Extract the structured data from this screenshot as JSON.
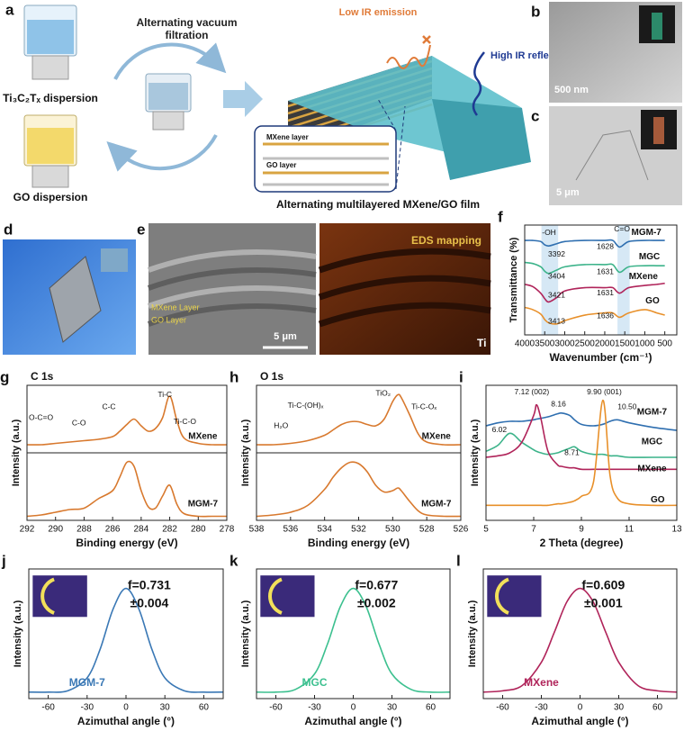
{
  "panels": {
    "a": {
      "label": "a",
      "filtration": "Alternating vacuum filtration",
      "ti_dispersion": "Ti₃C₂Tₓ dispersion",
      "go_dispersion": "GO dispersion",
      "low_ir": "Low IR emission",
      "high_ir": "High IR reflection",
      "mxene_layer": "MXene layer",
      "go_layer": "GO layer",
      "caption": "Alternating multilayered MXene/GO film"
    },
    "b": {
      "label": "b",
      "scale_bar": "500 nm"
    },
    "c": {
      "label": "c",
      "scale_bar": "5 μm"
    },
    "d": {
      "label": "d"
    },
    "e": {
      "label": "e",
      "eds": "EDS mapping",
      "mxene_layer": "MXene Layer",
      "go_layer": "GO Layer",
      "scale_bar": "5 μm",
      "element": "Ti"
    }
  },
  "chart_data": [
    {
      "type": "line",
      "panel_label": "f",
      "x_label": "Wavenumber (cm⁻¹)",
      "y_label": "Transmittance (%)",
      "x": [
        4000,
        3800,
        3600,
        3500,
        3400,
        3200,
        3000,
        2500,
        2000,
        1800,
        1630,
        1400,
        1000,
        700,
        500
      ],
      "xlim": [
        4000,
        200
      ],
      "xticks": [
        4000,
        3500,
        3000,
        2500,
        2000,
        1500,
        1000,
        500
      ],
      "ylim": [
        0,
        10
      ],
      "series": [
        {
          "name": "MGM-7",
          "color": "#2f6fb0",
          "values": [
            8.6,
            8.6,
            8.5,
            8.2,
            8.1,
            8.3,
            8.5,
            8.6,
            8.6,
            8.6,
            8.0,
            8.5,
            8.6,
            8.6,
            8.6
          ]
        },
        {
          "name": "MGC",
          "color": "#3cb38a",
          "values": [
            6.6,
            6.5,
            6.2,
            5.8,
            5.6,
            5.9,
            6.2,
            6.4,
            6.4,
            6.4,
            5.7,
            6.2,
            6.3,
            6.3,
            6.3
          ]
        },
        {
          "name": "MXene",
          "color": "#b0245a",
          "values": [
            4.6,
            4.4,
            3.8,
            3.3,
            3.0,
            3.4,
            4.0,
            4.3,
            4.3,
            4.3,
            3.8,
            4.3,
            4.5,
            4.6,
            4.7
          ]
        },
        {
          "name": "GO",
          "color": "#e8902a",
          "values": [
            2.5,
            2.3,
            1.9,
            1.4,
            1.1,
            1.0,
            1.3,
            1.8,
            2.0,
            2.0,
            1.6,
            2.0,
            2.3,
            2.0,
            1.8
          ]
        }
      ],
      "annotations": [
        "-OH",
        "C=O",
        "3392",
        "1628",
        "3404",
        "1631",
        "3421",
        "1631",
        "3413",
        "1636"
      ]
    },
    {
      "type": "line",
      "panel_label": "g",
      "title": "C 1s",
      "x_label": "Binding energy (eV)",
      "y_label": "Intensity (a.u.)",
      "x": [
        292,
        291,
        290,
        289,
        288,
        287,
        286,
        285.5,
        285,
        284.5,
        284,
        283.5,
        283,
        282.5,
        282,
        281.5,
        281,
        280,
        279,
        278
      ],
      "xlim": [
        292,
        278
      ],
      "xticks": [
        292,
        290,
        288,
        286,
        284,
        282,
        280,
        278
      ],
      "ylim": [
        0,
        10
      ],
      "series": [
        {
          "name": "MXene",
          "color": "#d8792e",
          "values": [
            5.6,
            5.6,
            5.7,
            5.8,
            5.9,
            6.0,
            6.2,
            6.6,
            7.1,
            7.5,
            7.0,
            6.6,
            6.8,
            7.6,
            9.2,
            7.4,
            6.1,
            5.7,
            5.6,
            5.6
          ]
        },
        {
          "name": "MGM-7",
          "color": "#d8792e",
          "values": [
            0.3,
            0.4,
            0.6,
            0.8,
            0.9,
            1.6,
            2.2,
            3.2,
            4.3,
            4.0,
            2.2,
            1.0,
            0.9,
            1.8,
            2.6,
            1.2,
            0.5,
            0.3,
            0.3,
            0.3
          ]
        }
      ],
      "annotations": [
        "O-C=O",
        "C-O",
        "C-C",
        "Ti-C",
        "Ti-C-O"
      ]
    },
    {
      "type": "line",
      "panel_label": "h",
      "title": "O 1s",
      "x_label": "Binding energy (eV)",
      "y_label": "Intensity (a.u.)",
      "x": [
        538,
        537,
        536,
        535,
        534,
        533.5,
        533,
        532.5,
        532,
        531.5,
        531,
        530.5,
        530,
        529.7,
        529.5,
        529,
        528.5,
        528,
        527,
        526
      ],
      "xlim": [
        538,
        526
      ],
      "xticks": [
        538,
        536,
        534,
        532,
        530,
        528,
        526
      ],
      "ylim": [
        0,
        10
      ],
      "series": [
        {
          "name": "MXene",
          "color": "#d8792e",
          "values": [
            5.6,
            5.6,
            5.7,
            5.9,
            6.3,
            6.7,
            7.1,
            7.3,
            7.3,
            7.1,
            7.0,
            7.5,
            8.8,
            9.3,
            9.1,
            7.8,
            6.4,
            5.8,
            5.6,
            5.6
          ]
        },
        {
          "name": "MGM-7",
          "color": "#d8792e",
          "values": [
            0.3,
            0.4,
            0.6,
            1.1,
            2.3,
            3.2,
            3.9,
            4.3,
            4.2,
            3.6,
            2.6,
            2.1,
            2.2,
            2.4,
            2.2,
            1.4,
            0.7,
            0.4,
            0.3,
            0.3
          ]
        }
      ],
      "annotations": [
        "H₂O",
        "Ti-C-(OH)ₓ",
        "TiO₂",
        "Ti-C-Oₓ"
      ]
    },
    {
      "type": "line",
      "panel_label": "i",
      "x_label": "2 Theta (degree)",
      "y_label": "Intensity (a.u.)",
      "x": [
        5,
        5.5,
        6,
        6.5,
        7,
        7.12,
        7.3,
        7.6,
        8,
        8.16,
        8.5,
        8.71,
        9,
        9.5,
        9.9,
        10.2,
        10.5,
        11,
        12,
        13
      ],
      "xlim": [
        5,
        13
      ],
      "xticks": [
        5,
        7,
        9,
        11,
        13
      ],
      "ylim": [
        1,
        10
      ],
      "series": [
        {
          "name": "MGM-7",
          "color": "#2f6fb0",
          "values": [
            7.3,
            7.5,
            7.6,
            7.6,
            7.7,
            7.75,
            7.8,
            7.9,
            8.1,
            8.15,
            8.0,
            7.7,
            7.4,
            7.3,
            7.4,
            7.6,
            7.7,
            7.5,
            7.2,
            7.0
          ]
        },
        {
          "name": "MGC",
          "color": "#3cb38a",
          "values": [
            5.6,
            6.0,
            6.8,
            6.2,
            5.7,
            5.6,
            5.5,
            5.4,
            5.5,
            5.6,
            5.8,
            5.9,
            5.6,
            5.4,
            5.4,
            5.3,
            5.3,
            5.2,
            5.2,
            5.2
          ]
        },
        {
          "name": "MXene",
          "color": "#b0245a",
          "values": [
            5.2,
            5.3,
            5.5,
            6.2,
            8.0,
            8.7,
            7.8,
            5.6,
            4.7,
            4.6,
            4.5,
            4.5,
            4.4,
            4.4,
            4.4,
            4.4,
            4.4,
            4.4,
            4.4,
            4.4
          ]
        },
        {
          "name": "GO",
          "color": "#e8902a",
          "values": [
            2.0,
            2.0,
            2.0,
            2.0,
            2.0,
            2.0,
            2.0,
            2.0,
            2.1,
            2.1,
            2.2,
            2.3,
            2.6,
            3.5,
            9.0,
            4.0,
            2.5,
            2.1,
            2.0,
            2.0
          ]
        }
      ],
      "annotations": [
        "7.12 (002)",
        "8.16",
        "9.90 (001)",
        "10.50",
        "6.02",
        "8.71"
      ]
    },
    {
      "type": "line",
      "panel_label": "j",
      "x_label": "Azimuthal angle (°)",
      "y_label": "Intensity (a.u.)",
      "x": [
        -75,
        -60,
        -45,
        -30,
        -20,
        -10,
        0,
        10,
        20,
        30,
        45,
        60,
        75
      ],
      "xlim": [
        -75,
        75
      ],
      "xticks": [
        -60,
        -30,
        0,
        30,
        60
      ],
      "ylim": [
        0,
        1
      ],
      "series": [
        {
          "name": "MGM-7",
          "color": "#3a78b5",
          "values": [
            0.05,
            0.05,
            0.06,
            0.16,
            0.38,
            0.69,
            0.85,
            0.69,
            0.38,
            0.16,
            0.06,
            0.05,
            0.05
          ]
        }
      ],
      "annotations": [
        "f=0.731",
        "±0.004"
      ]
    },
    {
      "type": "line",
      "panel_label": "k",
      "x_label": "Azimuthal angle (°)",
      "y_label": "Intensity (a.u.)",
      "x": [
        -75,
        -60,
        -45,
        -30,
        -20,
        -10,
        0,
        10,
        20,
        30,
        45,
        60,
        75
      ],
      "xlim": [
        -75,
        75
      ],
      "xticks": [
        -60,
        -30,
        0,
        30,
        60
      ],
      "ylim": [
        0,
        1
      ],
      "series": [
        {
          "name": "MGC",
          "color": "#3cc08f",
          "values": [
            0.05,
            0.05,
            0.07,
            0.19,
            0.42,
            0.71,
            0.85,
            0.71,
            0.42,
            0.19,
            0.07,
            0.05,
            0.05
          ]
        }
      ],
      "annotations": [
        "f=0.677",
        "±0.002"
      ]
    },
    {
      "type": "line",
      "panel_label": "l",
      "x_label": "Azimuthal angle (°)",
      "y_label": "Intensity (a.u.)",
      "x": [
        -75,
        -60,
        -45,
        -30,
        -20,
        -10,
        0,
        10,
        20,
        30,
        45,
        60,
        75
      ],
      "xlim": [
        -75,
        75
      ],
      "xticks": [
        -60,
        -30,
        0,
        30,
        60
      ],
      "ylim": [
        0,
        1
      ],
      "series": [
        {
          "name": "MXene",
          "color": "#b0245a",
          "values": [
            0.05,
            0.06,
            0.1,
            0.28,
            0.51,
            0.75,
            0.85,
            0.75,
            0.51,
            0.28,
            0.1,
            0.06,
            0.05
          ]
        }
      ],
      "annotations": [
        "f=0.609",
        "±0.001"
      ]
    }
  ]
}
